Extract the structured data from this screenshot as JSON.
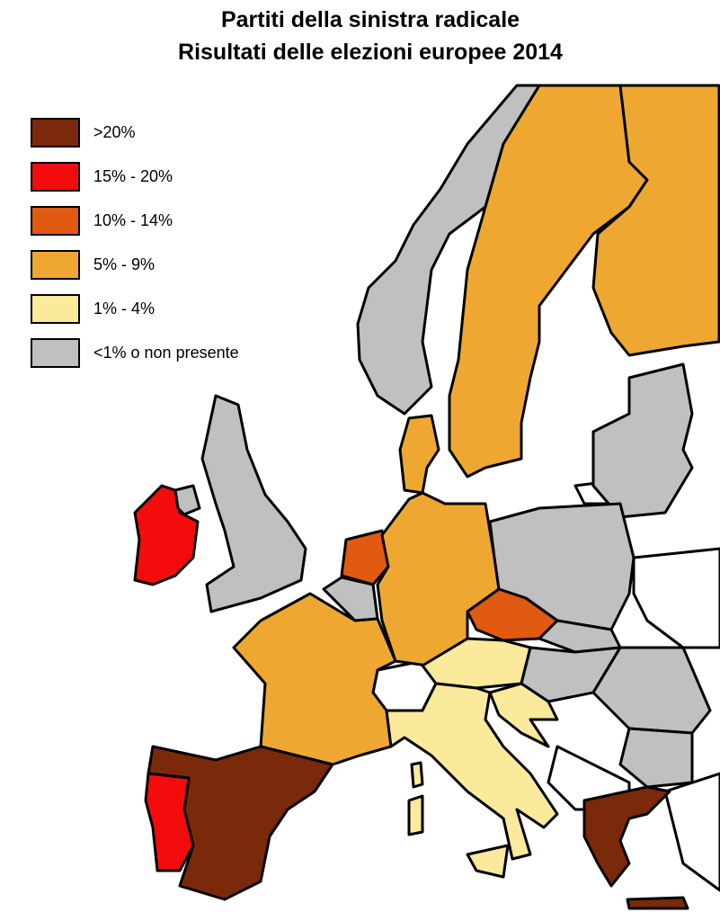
{
  "title": [
    "Partiti della sinistra radicale",
    "Risultati delle elezioni europee 2014"
  ],
  "legend": {
    "items": [
      {
        "label": ">20%",
        "color": "#7a2a0a"
      },
      {
        "label": "15% - 20%",
        "color": "#f40c0c"
      },
      {
        "label": "10% - 14%",
        "color": "#e05a12"
      },
      {
        "label": "5% - 9%",
        "color": "#eea832"
      },
      {
        "label": "1% - 4%",
        "color": "#fbe99c"
      },
      {
        "label": "<1% o non presente",
        "color": "#c0c0c0"
      }
    ]
  }
}
